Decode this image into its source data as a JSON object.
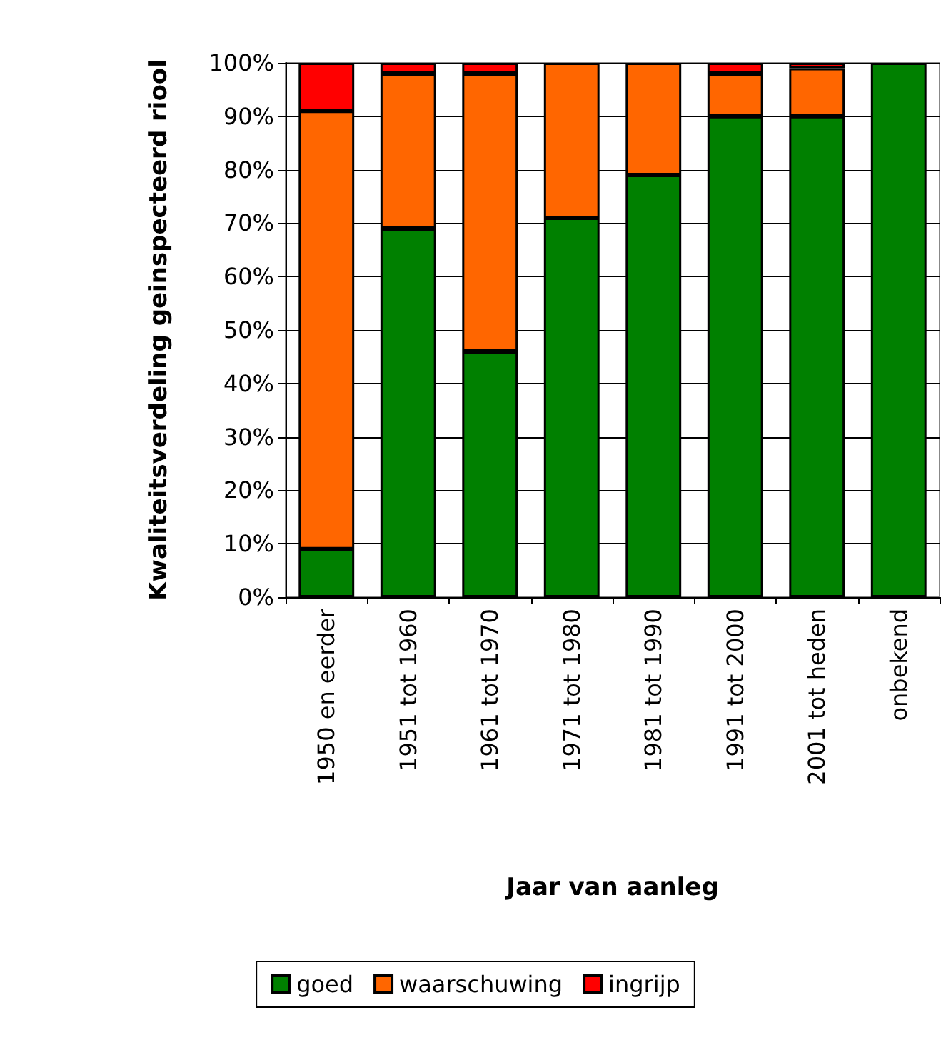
{
  "chart_data": {
    "type": "bar",
    "stacked": true,
    "xlabel": "Jaar van aanleg",
    "ylabel": "Kwaliteitsverdeling geinspecteerd riool",
    "categories": [
      "1950 en eerder",
      "1951 tot 1960",
      "1961 tot 1970",
      "1971 tot 1980",
      "1981 tot 1990",
      "1991 tot 2000",
      "2001 tot heden",
      "onbekend"
    ],
    "series": [
      {
        "name": "goed",
        "color": "#008000",
        "values": [
          9,
          69,
          46,
          71,
          79,
          90,
          90,
          100
        ]
      },
      {
        "name": "waarschuwing",
        "color": "#ff6600",
        "values": [
          82,
          29,
          52,
          29,
          21,
          8,
          9,
          0
        ]
      },
      {
        "name": "ingrijp",
        "color": "#ff0000",
        "values": [
          9,
          2,
          2,
          0,
          0,
          2,
          1,
          0
        ]
      }
    ],
    "ylim": [
      0,
      100
    ],
    "yticks": [
      {
        "value": 0,
        "label": "0%"
      },
      {
        "value": 10,
        "label": "10%"
      },
      {
        "value": 20,
        "label": "20%"
      },
      {
        "value": 30,
        "label": "30%"
      },
      {
        "value": 40,
        "label": "40%"
      },
      {
        "value": 50,
        "label": "50%"
      },
      {
        "value": 60,
        "label": "60%"
      },
      {
        "value": 70,
        "label": "70%"
      },
      {
        "value": 80,
        "label": "80%"
      },
      {
        "value": 90,
        "label": "90%"
      },
      {
        "value": 100,
        "label": "100%"
      }
    ],
    "grid": "y",
    "legend": "bottom"
  }
}
